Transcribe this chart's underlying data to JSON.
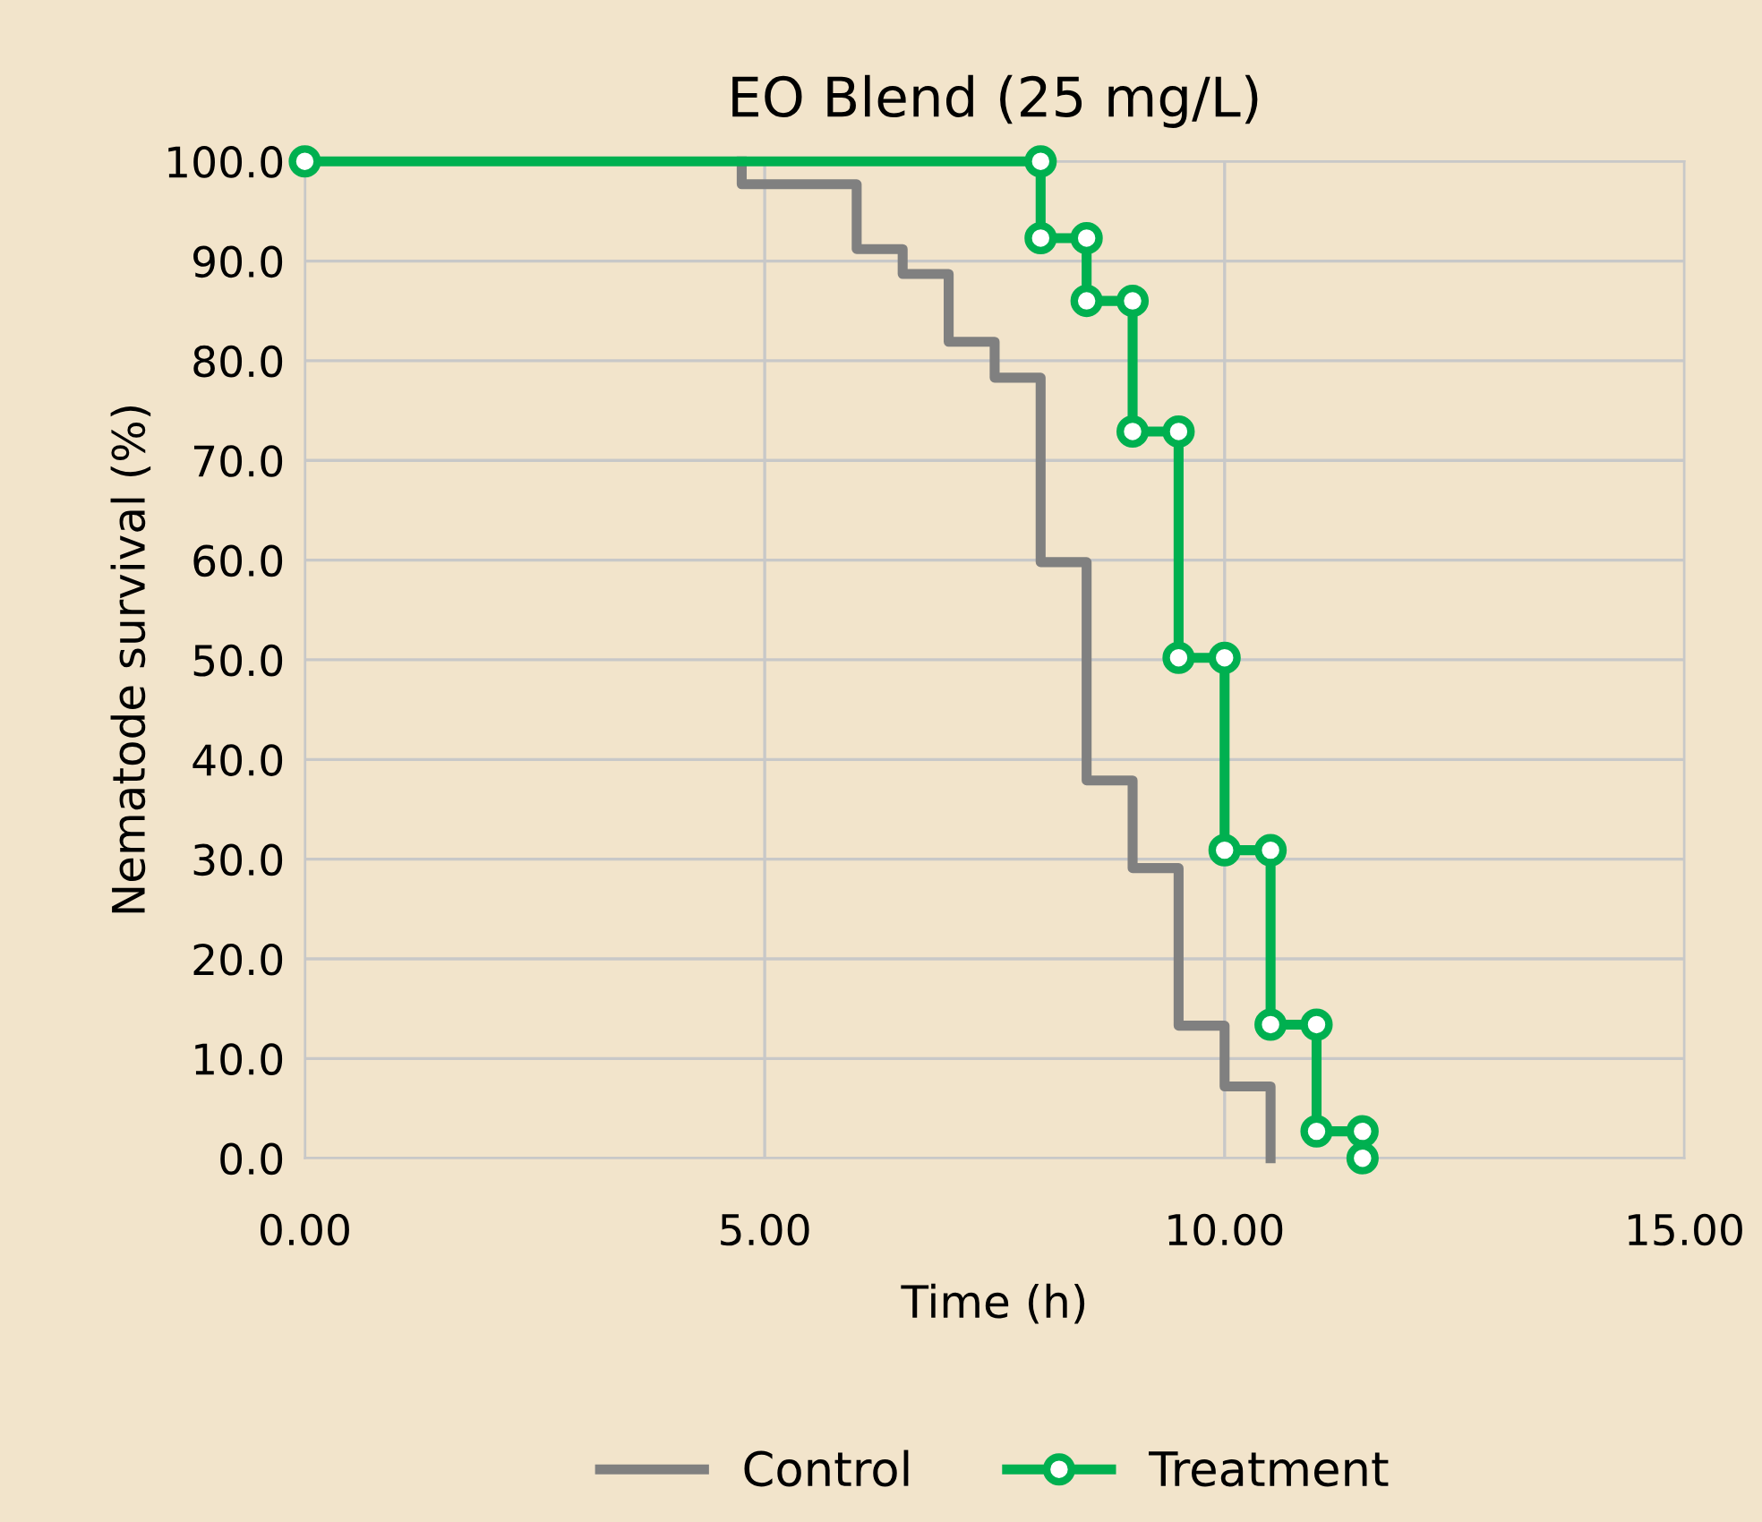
{
  "chart_data": {
    "type": "line",
    "title": "EO Blend (25 mg/L)",
    "xlabel": "Time (h)",
    "ylabel": "Nematode survival (%)",
    "xlim": [
      0,
      15
    ],
    "ylim": [
      0,
      100
    ],
    "xticks": [
      {
        "value": 0,
        "label": "0.00"
      },
      {
        "value": 5,
        "label": "5.00"
      },
      {
        "value": 10,
        "label": "10.00"
      },
      {
        "value": 15,
        "label": "15.00"
      }
    ],
    "yticks": [
      {
        "value": 0,
        "label": "0.0"
      },
      {
        "value": 10,
        "label": "10.0"
      },
      {
        "value": 20,
        "label": "20.0"
      },
      {
        "value": 30,
        "label": "30.0"
      },
      {
        "value": 40,
        "label": "40.0"
      },
      {
        "value": 50,
        "label": "50.0"
      },
      {
        "value": 60,
        "label": "60.0"
      },
      {
        "value": 70,
        "label": "70.0"
      },
      {
        "value": 80,
        "label": "80.0"
      },
      {
        "value": 90,
        "label": "90.0"
      },
      {
        "value": 100,
        "label": "100.0"
      }
    ],
    "grid": true,
    "legend": "bottom",
    "line_style": "solid",
    "series": [
      {
        "name": "Control",
        "color": "#808080",
        "marker": "none",
        "x": [
          4.75,
          4.75,
          6,
          6,
          6.5,
          6.5,
          7,
          7,
          7.5,
          7.5,
          8,
          8,
          8.5,
          8.5,
          9,
          9,
          9.5,
          9.5,
          10,
          10,
          10.5,
          10.5
        ],
        "values": [
          100,
          97.7,
          97.7,
          91.2,
          91.2,
          88.7,
          88.7,
          81.9,
          81.9,
          78.3,
          78.3,
          59.8,
          59.8,
          37.9,
          37.9,
          29.1,
          29.1,
          13.3,
          13.3,
          7.2,
          7.2,
          0
        ]
      },
      {
        "name": "Treatment",
        "color": "#00b050",
        "marker": "circle",
        "x": [
          0,
          8,
          8,
          8.5,
          8.5,
          9,
          9,
          9.5,
          9.5,
          10,
          10,
          10.5,
          10.5,
          11,
          11,
          11.5,
          11.5
        ],
        "values": [
          100,
          100,
          92.3,
          92.3,
          86,
          86,
          72.9,
          72.9,
          50.2,
          50.2,
          30.9,
          30.9,
          13.4,
          13.4,
          2.7,
          2.7,
          0
        ]
      }
    ]
  }
}
